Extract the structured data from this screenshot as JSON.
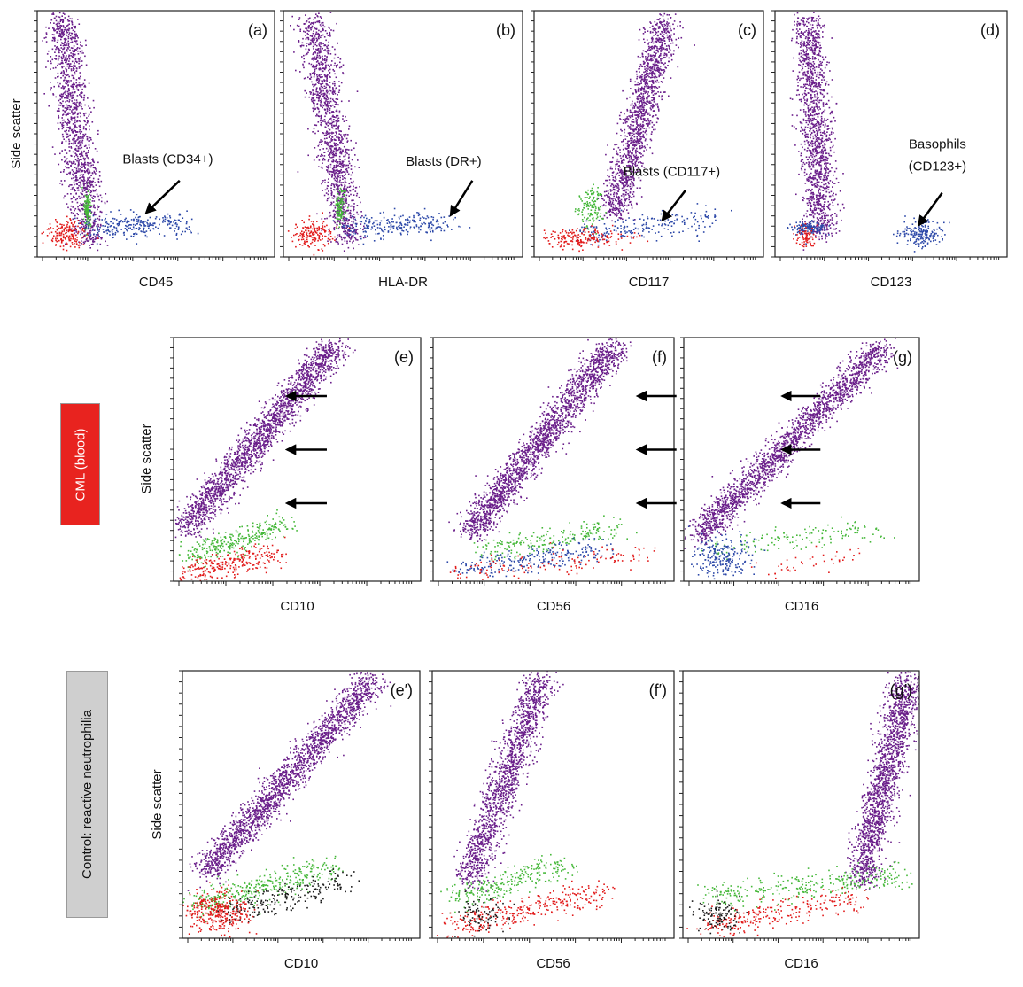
{
  "figure": {
    "row_labels": {
      "cml": "CML (blood)",
      "control": "Control: reactive neutrophilia"
    },
    "colors": {
      "granulocytes": "#6a1e8a",
      "monocytes_green": "#46b83a",
      "lymphocytes_blue": "#2c48a8",
      "debris_red": "#e21b1b",
      "other_black": "#1a1a1a",
      "cml_label_bg": "#e8231f",
      "control_label_bg": "#cfcfcf"
    }
  },
  "chart_data": [
    {
      "type": "scatter",
      "panel": "(a)",
      "xlabel": "CD45",
      "ylabel": "Side scatter",
      "annotations": [
        {
          "text": "Blasts (CD34+)",
          "arrow": "down-left"
        }
      ],
      "populations": [
        {
          "color": "purple",
          "x": [
            0.22,
            0.1
          ],
          "y": [
            0.06,
            0.97
          ],
          "count": 1400
        },
        {
          "color": "green",
          "x": [
            0.2,
            0.22
          ],
          "y": [
            0.14,
            0.26
          ],
          "count": 120
        },
        {
          "color": "blue",
          "x": [
            0.22,
            0.62
          ],
          "y": [
            0.12,
            0.14
          ],
          "count": 260
        },
        {
          "color": "red",
          "x": [
            0.18,
            0.06
          ],
          "y": [
            0.05,
            0.14
          ],
          "count": 160
        }
      ]
    },
    {
      "type": "scatter",
      "panel": "(b)",
      "xlabel": "HLA-DR",
      "ylabel": "",
      "annotations": [
        {
          "text": "Blasts (DR+)",
          "arrow": "down-left"
        }
      ],
      "populations": [
        {
          "color": "purple",
          "x": [
            0.27,
            0.12
          ],
          "y": [
            0.06,
            0.97
          ],
          "count": 1400
        },
        {
          "color": "green",
          "x": [
            0.25,
            0.22
          ],
          "y": [
            0.14,
            0.26
          ],
          "count": 100
        },
        {
          "color": "blue",
          "x": [
            0.25,
            0.7
          ],
          "y": [
            0.12,
            0.14
          ],
          "count": 240
        },
        {
          "color": "red",
          "x": [
            0.18,
            0.06
          ],
          "y": [
            0.05,
            0.14
          ],
          "count": 160
        }
      ]
    },
    {
      "type": "scatter",
      "panel": "(c)",
      "xlabel": "CD117",
      "ylabel": "",
      "annotations": [
        {
          "text": "Blasts (CD117+)",
          "arrow": "down-left"
        }
      ],
      "populations": [
        {
          "color": "purple",
          "x": [
            0.35,
            0.57
          ],
          "y": [
            0.18,
            0.97
          ],
          "count": 1500
        },
        {
          "color": "green",
          "x": [
            0.2,
            0.28
          ],
          "y": [
            0.14,
            0.26
          ],
          "count": 120
        },
        {
          "color": "blue",
          "x": [
            0.2,
            0.8
          ],
          "y": [
            0.1,
            0.16
          ],
          "count": 200
        },
        {
          "color": "red",
          "x": [
            0.06,
            0.35
          ],
          "y": [
            0.05,
            0.11
          ],
          "count": 180
        }
      ]
    },
    {
      "type": "scatter",
      "panel": "(d)",
      "xlabel": "CD123",
      "ylabel": "",
      "annotations": [
        {
          "text": "Basophils",
          "arrow": "none"
        },
        {
          "text": "(CD123+)",
          "arrow": "down-left"
        }
      ],
      "populations": [
        {
          "color": "purple",
          "x": [
            0.2,
            0.14
          ],
          "y": [
            0.1,
            0.97
          ],
          "count": 1400
        },
        {
          "color": "blue",
          "x": [
            0.1,
            0.2
          ],
          "y": [
            0.1,
            0.14
          ],
          "count": 140
        },
        {
          "color": "blue",
          "x": [
            0.55,
            0.7
          ],
          "y": [
            0.06,
            0.13
          ],
          "count": 180
        },
        {
          "color": "red",
          "x": [
            0.1,
            0.16
          ],
          "y": [
            0.05,
            0.12
          ],
          "count": 70
        }
      ]
    },
    {
      "type": "scatter",
      "panel": "(e)",
      "xlabel": "CD10",
      "ylabel": "Side scatter",
      "annotations": [
        {
          "text": "",
          "arrow": "left"
        },
        {
          "text": "",
          "arrow": "left"
        },
        {
          "text": "",
          "arrow": "left"
        }
      ],
      "populations": [
        {
          "color": "purple",
          "x": [
            0.05,
            0.65
          ],
          "y": [
            0.22,
            0.97
          ],
          "count": 2000
        },
        {
          "color": "green",
          "x": [
            0.05,
            0.45
          ],
          "y": [
            0.1,
            0.24
          ],
          "count": 300
        },
        {
          "color": "red",
          "x": [
            0.05,
            0.42
          ],
          "y": [
            0.04,
            0.11
          ],
          "count": 260
        }
      ]
    },
    {
      "type": "scatter",
      "panel": "(f)",
      "xlabel": "CD56",
      "ylabel": "",
      "annotations": [
        {
          "text": "",
          "arrow": "left"
        },
        {
          "text": "",
          "arrow": "left"
        },
        {
          "text": "",
          "arrow": "left"
        }
      ],
      "populations": [
        {
          "color": "purple",
          "x": [
            0.15,
            0.75
          ],
          "y": [
            0.2,
            0.97
          ],
          "count": 2000
        },
        {
          "color": "green",
          "x": [
            0.2,
            0.75
          ],
          "y": [
            0.12,
            0.22
          ],
          "count": 200
        },
        {
          "color": "blue",
          "x": [
            0.12,
            0.72
          ],
          "y": [
            0.05,
            0.14
          ],
          "count": 240
        },
        {
          "color": "red",
          "x": [
            0.05,
            0.9
          ],
          "y": [
            0.03,
            0.12
          ],
          "count": 130
        }
      ]
    },
    {
      "type": "scatter",
      "panel": "(g)",
      "xlabel": "CD16",
      "ylabel": "",
      "annotations": [
        {
          "text": "",
          "arrow": "left"
        },
        {
          "text": "",
          "arrow": "left"
        },
        {
          "text": "",
          "arrow": "left"
        }
      ],
      "populations": [
        {
          "color": "purple",
          "x": [
            0.05,
            0.85
          ],
          "y": [
            0.18,
            0.97
          ],
          "count": 1900
        },
        {
          "color": "green",
          "x": [
            0.12,
            0.85
          ],
          "y": [
            0.14,
            0.22
          ],
          "count": 140
        },
        {
          "color": "blue",
          "x": [
            0.07,
            0.25
          ],
          "y": [
            0.04,
            0.16
          ],
          "count": 220
        },
        {
          "color": "red",
          "x": [
            0.3,
            0.75
          ],
          "y": [
            0.04,
            0.12
          ],
          "count": 40
        }
      ]
    },
    {
      "type": "scatter",
      "panel": "(e′)",
      "xlabel": "CD10",
      "ylabel": "Side scatter",
      "populations": [
        {
          "color": "purple",
          "x": [
            0.1,
            0.8
          ],
          "y": [
            0.25,
            0.97
          ],
          "count": 2000
        },
        {
          "color": "green",
          "x": [
            0.05,
            0.62
          ],
          "y": [
            0.12,
            0.27
          ],
          "count": 360
        },
        {
          "color": "black",
          "x": [
            0.2,
            0.7
          ],
          "y": [
            0.1,
            0.22
          ],
          "count": 220
        },
        {
          "color": "red",
          "x": [
            0.05,
            0.25
          ],
          "y": [
            0.04,
            0.16
          ],
          "count": 340
        }
      ]
    },
    {
      "type": "scatter",
      "panel": "(f′)",
      "xlabel": "CD56",
      "ylabel": "",
      "populations": [
        {
          "color": "purple",
          "x": [
            0.15,
            0.45
          ],
          "y": [
            0.22,
            0.97
          ],
          "count": 1500
        },
        {
          "color": "green",
          "x": [
            0.1,
            0.55
          ],
          "y": [
            0.15,
            0.28
          ],
          "count": 260
        },
        {
          "color": "red",
          "x": [
            0.05,
            0.7
          ],
          "y": [
            0.04,
            0.17
          ],
          "count": 320
        },
        {
          "color": "black",
          "x": [
            0.1,
            0.3
          ],
          "y": [
            0.04,
            0.14
          ],
          "count": 90
        }
      ]
    },
    {
      "type": "scatter",
      "panel": "(g′)",
      "xlabel": "CD16",
      "ylabel": "",
      "populations": [
        {
          "color": "purple",
          "x": [
            0.75,
            0.95
          ],
          "y": [
            0.22,
            0.97
          ],
          "count": 1700
        },
        {
          "color": "green",
          "x": [
            0.1,
            0.92
          ],
          "y": [
            0.16,
            0.24
          ],
          "count": 300
        },
        {
          "color": "red",
          "x": [
            0.08,
            0.75
          ],
          "y": [
            0.04,
            0.16
          ],
          "count": 260
        },
        {
          "color": "black",
          "x": [
            0.08,
            0.22
          ],
          "y": [
            0.04,
            0.14
          ],
          "count": 120
        }
      ]
    }
  ]
}
